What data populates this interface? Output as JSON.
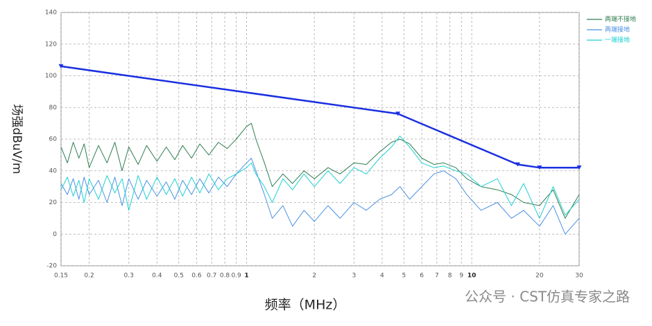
{
  "chart_data": {
    "type": "line",
    "x_label": "频率（MHz）",
    "y_label": "场强dBuV/m",
    "watermark": "公众号 · CST仿真专家之路",
    "xscale": "log",
    "grid": true,
    "legend": "upper right",
    "xlim": [
      0.15,
      30
    ],
    "ylim": [
      -20,
      140
    ],
    "xticks": [
      0.15,
      0.2,
      0.3,
      0.4,
      0.5,
      0.6,
      0.7,
      0.8,
      0.9,
      1,
      2,
      3,
      4,
      5,
      6,
      7,
      8,
      9,
      10,
      20,
      30
    ],
    "yticks": [
      -20,
      0,
      20,
      40,
      60,
      80,
      100,
      120,
      140
    ],
    "series": [
      {
        "name": "两端不接地",
        "color": "#2e7d4f",
        "x": [
          0.15,
          0.16,
          0.17,
          0.18,
          0.19,
          0.2,
          0.22,
          0.24,
          0.26,
          0.28,
          0.3,
          0.33,
          0.36,
          0.4,
          0.44,
          0.48,
          0.52,
          0.57,
          0.62,
          0.68,
          0.75,
          0.82,
          0.9,
          1.0,
          1.05,
          1.1,
          1.2,
          1.3,
          1.45,
          1.6,
          1.8,
          2.0,
          2.3,
          2.6,
          3.0,
          3.4,
          3.9,
          4.4,
          4.8,
          5.3,
          6.0,
          6.8,
          7.5,
          8.5,
          9.5,
          11,
          13,
          15,
          17,
          20,
          23,
          26,
          30
        ],
        "values": [
          55,
          45,
          58,
          48,
          57,
          42,
          56,
          45,
          58,
          40,
          55,
          44,
          56,
          46,
          55,
          47,
          56,
          48,
          57,
          50,
          58,
          54,
          60,
          68,
          70,
          60,
          45,
          30,
          38,
          32,
          40,
          35,
          42,
          38,
          45,
          44,
          52,
          58,
          60,
          57,
          48,
          44,
          45,
          42,
          35,
          30,
          28,
          25,
          20,
          18,
          28,
          10,
          25
        ]
      },
      {
        "name": "两端接地",
        "color": "#4a90e2",
        "x": [
          0.15,
          0.16,
          0.17,
          0.18,
          0.19,
          0.2,
          0.22,
          0.24,
          0.26,
          0.28,
          0.3,
          0.33,
          0.36,
          0.4,
          0.44,
          0.48,
          0.52,
          0.57,
          0.62,
          0.68,
          0.75,
          0.82,
          0.9,
          1.0,
          1.05,
          1.1,
          1.2,
          1.3,
          1.45,
          1.6,
          1.8,
          2.0,
          2.3,
          2.6,
          3.0,
          3.4,
          3.9,
          4.4,
          4.8,
          5.3,
          6.0,
          6.8,
          7.5,
          8.5,
          9.5,
          11,
          13,
          15,
          17,
          20,
          23,
          26,
          30
        ],
        "values": [
          32,
          25,
          35,
          22,
          36,
          25,
          34,
          20,
          36,
          18,
          35,
          22,
          34,
          24,
          33,
          22,
          34,
          25,
          35,
          26,
          36,
          30,
          38,
          45,
          48,
          40,
          25,
          10,
          18,
          5,
          15,
          8,
          18,
          10,
          20,
          15,
          22,
          25,
          30,
          22,
          30,
          38,
          40,
          35,
          25,
          15,
          20,
          10,
          15,
          5,
          18,
          0,
          10
        ]
      },
      {
        "name": "一端接地",
        "color": "#1ccfd0",
        "x": [
          0.15,
          0.16,
          0.17,
          0.18,
          0.19,
          0.2,
          0.22,
          0.24,
          0.26,
          0.28,
          0.3,
          0.33,
          0.36,
          0.4,
          0.44,
          0.48,
          0.52,
          0.57,
          0.62,
          0.68,
          0.75,
          0.82,
          0.9,
          1.0,
          1.05,
          1.1,
          1.2,
          1.3,
          1.45,
          1.6,
          1.8,
          2.0,
          2.3,
          2.6,
          3.0,
          3.4,
          3.9,
          4.4,
          4.8,
          5.3,
          6.0,
          6.8,
          7.5,
          8.5,
          9.5,
          11,
          13,
          15,
          17,
          20,
          23,
          26,
          30
        ],
        "values": [
          28,
          36,
          24,
          34,
          20,
          35,
          22,
          37,
          26,
          35,
          15,
          37,
          22,
          36,
          25,
          35,
          24,
          36,
          26,
          38,
          28,
          35,
          38,
          42,
          45,
          38,
          30,
          20,
          35,
          28,
          38,
          30,
          40,
          32,
          42,
          38,
          48,
          55,
          62,
          55,
          45,
          42,
          43,
          40,
          38,
          30,
          35,
          18,
          32,
          10,
          30,
          12,
          22
        ]
      },
      {
        "color": "#1a2fe0",
        "markers": true,
        "x": [
          0.15,
          4.7,
          16,
          20,
          30
        ],
        "values": [
          106,
          76,
          44,
          42,
          42
        ]
      }
    ]
  }
}
